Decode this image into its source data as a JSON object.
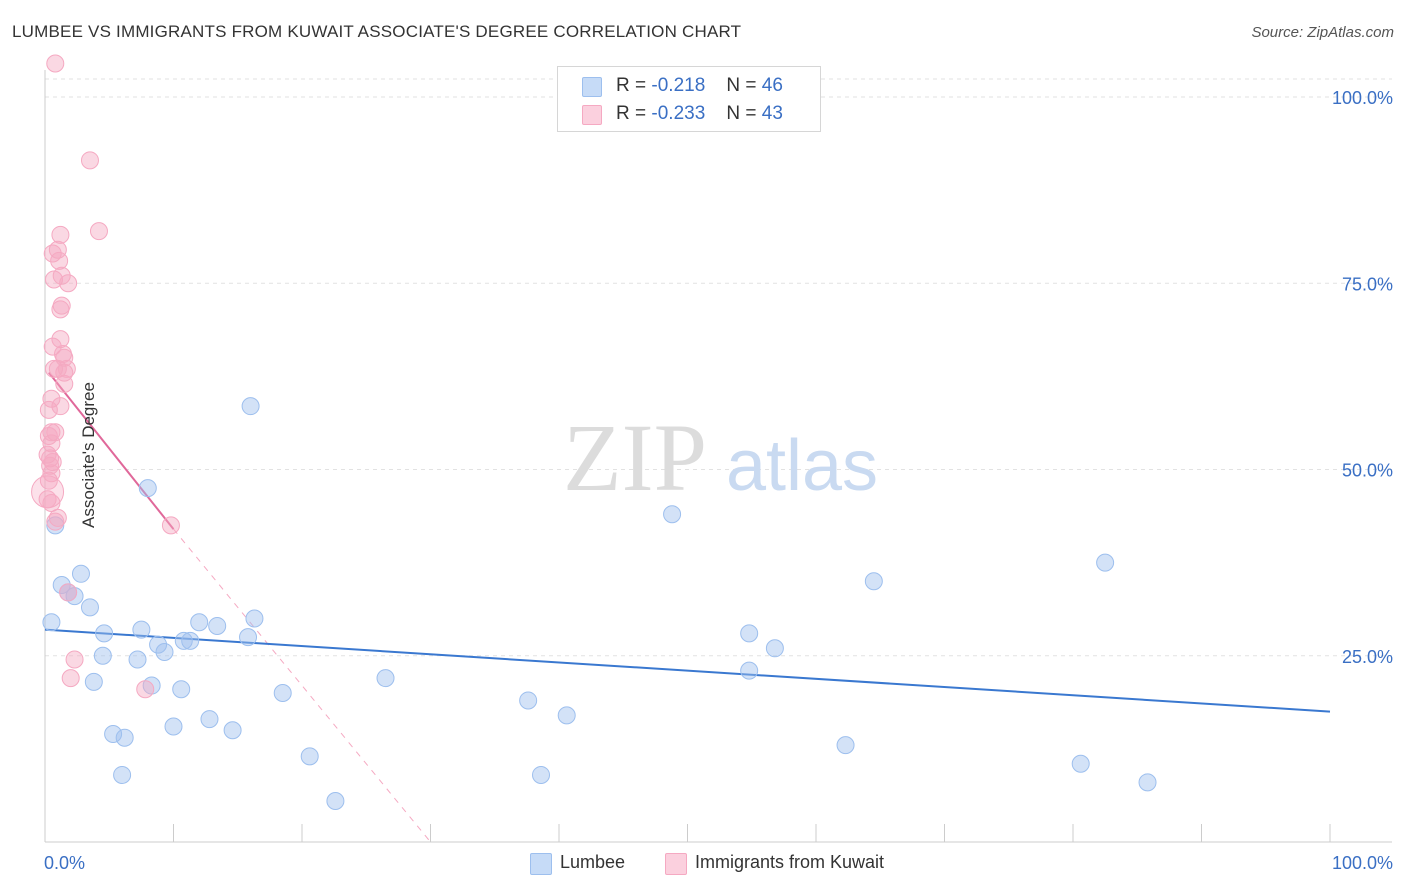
{
  "title": "LUMBEE VS IMMIGRANTS FROM KUWAIT ASSOCIATE'S DEGREE CORRELATION CHART",
  "source": "Source: ZipAtlas.com",
  "watermark": {
    "zip": "ZIP",
    "atlas": "atlas"
  },
  "legend_top": {
    "rows": [
      {
        "r_label": "R =",
        "r_value": "-0.218",
        "n_label": "N =",
        "n_value": "46",
        "color": "#9dbfee"
      },
      {
        "r_label": "R =",
        "r_value": "-0.233",
        "n_label": "N =",
        "n_value": "43",
        "color": "#f5a9c2"
      }
    ]
  },
  "chart_data": {
    "type": "scatter",
    "title": "LUMBEE VS IMMIGRANTS FROM KUWAIT ASSOCIATE'S DEGREE CORRELATION CHART",
    "xlabel": "",
    "ylabel": "Associate's Degree",
    "xlim": [
      0,
      100
    ],
    "ylim": [
      0,
      100
    ],
    "x_tick_labels": [
      "0.0%",
      "100.0%"
    ],
    "y_tick_labels": [
      "25.0%",
      "50.0%",
      "75.0%",
      "100.0%"
    ],
    "y_ticks": [
      25,
      50,
      75,
      100
    ],
    "legend": [
      "Lumbee",
      "Immigrants from Kuwait"
    ],
    "series": [
      {
        "name": "Lumbee",
        "color": "#9dbfee",
        "line_color": "#3a78d0",
        "trend": {
          "x0": 0,
          "y0": 28.5,
          "x1": 100,
          "y1": 17.5
        },
        "points": [
          [
            0.8,
            42.5
          ],
          [
            1.3,
            34.5
          ],
          [
            1.8,
            33.5
          ],
          [
            2.3,
            33.0
          ],
          [
            2.8,
            36.0
          ],
          [
            3.5,
            31.5
          ],
          [
            4.5,
            25.0
          ],
          [
            4.6,
            28.0
          ],
          [
            3.8,
            21.5
          ],
          [
            5.3,
            14.5
          ],
          [
            6.2,
            14.0
          ],
          [
            6.0,
            9.0
          ],
          [
            7.2,
            24.5
          ],
          [
            7.5,
            28.5
          ],
          [
            8.3,
            21.0
          ],
          [
            8.8,
            26.5
          ],
          [
            9.3,
            25.5
          ],
          [
            10.0,
            15.5
          ],
          [
            10.6,
            20.5
          ],
          [
            10.8,
            27.0
          ],
          [
            11.3,
            27.0
          ],
          [
            12.0,
            29.5
          ],
          [
            12.8,
            16.5
          ],
          [
            13.4,
            29.0
          ],
          [
            14.6,
            15.0
          ],
          [
            15.8,
            27.5
          ],
          [
            16.3,
            30.0
          ],
          [
            18.5,
            20.0
          ],
          [
            20.6,
            11.5
          ],
          [
            22.6,
            5.5
          ],
          [
            26.5,
            22.0
          ],
          [
            8.0,
            47.5
          ],
          [
            16.0,
            58.5
          ],
          [
            37.6,
            19.0
          ],
          [
            38.6,
            9.0
          ],
          [
            40.6,
            17.0
          ],
          [
            48.8,
            44.0
          ],
          [
            54.8,
            28.0
          ],
          [
            54.8,
            23.0
          ],
          [
            56.8,
            26.0
          ],
          [
            62.3,
            13.0
          ],
          [
            64.5,
            35.0
          ],
          [
            80.6,
            10.5
          ],
          [
            82.5,
            37.5
          ],
          [
            85.8,
            8.0
          ],
          [
            0.5,
            29.5
          ]
        ]
      },
      {
        "name": "Immigrants from Kuwait",
        "color": "#f5a9c2",
        "line_color": "#e0689a",
        "trend": {
          "x0": 0.3,
          "y0": 63.0,
          "x1": 10.0,
          "y1": 42.0
        },
        "trend_dashed": {
          "x0": 10.0,
          "y0": 42.0,
          "x1": 30.0,
          "y1": 0.0
        },
        "points": [
          [
            0.8,
            104.5
          ],
          [
            3.5,
            91.5
          ],
          [
            4.2,
            82.0
          ],
          [
            1.2,
            81.5
          ],
          [
            1.0,
            79.5
          ],
          [
            0.6,
            79.0
          ],
          [
            1.1,
            78.0
          ],
          [
            1.3,
            76.0
          ],
          [
            0.7,
            75.5
          ],
          [
            1.8,
            75.0
          ],
          [
            1.3,
            72.0
          ],
          [
            1.2,
            71.5
          ],
          [
            1.2,
            67.5
          ],
          [
            0.6,
            66.5
          ],
          [
            1.4,
            65.5
          ],
          [
            1.5,
            65.0
          ],
          [
            0.7,
            63.5
          ],
          [
            1.0,
            63.5
          ],
          [
            1.5,
            63.0
          ],
          [
            1.7,
            63.5
          ],
          [
            1.5,
            61.5
          ],
          [
            0.5,
            59.5
          ],
          [
            1.2,
            58.5
          ],
          [
            0.3,
            58.0
          ],
          [
            0.5,
            55.0
          ],
          [
            0.8,
            55.0
          ],
          [
            0.3,
            54.5
          ],
          [
            0.5,
            53.5
          ],
          [
            0.2,
            52.0
          ],
          [
            0.4,
            51.5
          ],
          [
            0.6,
            51.0
          ],
          [
            0.4,
            50.5
          ],
          [
            0.5,
            49.5
          ],
          [
            0.3,
            48.5
          ],
          [
            0.2,
            46.0
          ],
          [
            0.5,
            45.5
          ],
          [
            1.0,
            43.5
          ],
          [
            0.8,
            43.0
          ],
          [
            1.8,
            33.5
          ],
          [
            2.3,
            24.5
          ],
          [
            2.0,
            22.0
          ],
          [
            7.8,
            20.5
          ],
          [
            9.8,
            42.5
          ]
        ]
      }
    ]
  },
  "bottom_legend": {
    "lumbee": "Lumbee",
    "kuwait": "Immigrants from Kuwait"
  }
}
